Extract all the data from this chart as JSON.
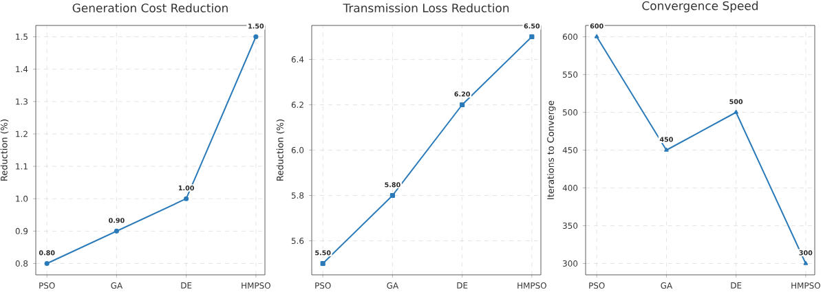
{
  "chart_data": [
    {
      "type": "line",
      "title": "Generation Cost Reduction",
      "ylabel": "Reduction (%)",
      "categories": [
        "PSO",
        "GA",
        "DE",
        "HMPSO"
      ],
      "values": [
        0.8,
        0.9,
        1.0,
        1.5
      ],
      "value_labels": [
        "0.80",
        "0.90",
        "1.00",
        "1.50"
      ],
      "color": "#2a7ab9",
      "marker": "circle",
      "grid": true,
      "ylim": [
        0.765,
        1.535
      ],
      "yticks": [
        0.8,
        0.9,
        {
          "value": 1.0,
          "label": "1.0"
        },
        1.1,
        1.2,
        1.3,
        1.4,
        1.5
      ]
    },
    {
      "type": "line",
      "title": "Transmission Loss Reduction",
      "ylabel": "Reduction (%)",
      "categories": [
        "PSO",
        "GA",
        "DE",
        "HMPSO"
      ],
      "values": [
        5.5,
        5.8,
        6.2,
        6.5
      ],
      "value_labels": [
        "5.50",
        "5.80",
        "6.20",
        "6.50"
      ],
      "color": "#2a7ab9",
      "marker": "square",
      "grid": true,
      "ylim": [
        5.45,
        6.55
      ],
      "yticks": [
        5.6,
        5.8,
        {
          "value": 6.0,
          "label": "6.0"
        },
        6.2,
        6.4
      ]
    },
    {
      "type": "line",
      "title": "Convergence Speed",
      "ylabel": "Iterations to Converge",
      "categories": [
        "PSO",
        "GA",
        "DE",
        "HMPSO"
      ],
      "values": [
        600,
        450,
        500,
        300
      ],
      "data_labels": true,
      "color": "#2a7ab9",
      "marker": "triangle",
      "grid": true,
      "ylim": [
        285,
        615
      ],
      "yticks": [
        300,
        350,
        400,
        450,
        500,
        550,
        600
      ]
    }
  ]
}
